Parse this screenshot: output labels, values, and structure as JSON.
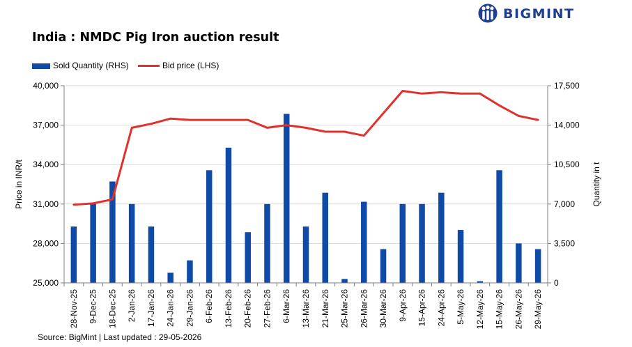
{
  "brand": {
    "name": "BIGMINT",
    "color": "#1f3f8f"
  },
  "title": "India : NMDC Pig Iron auction result",
  "source": "Source: BigMint | Last updated : 29-05-2026",
  "legend": {
    "bars": "Sold Quantity (RHS)",
    "line": "Bid price (LHS)"
  },
  "chart_data": {
    "type": "bar+line",
    "categories": [
      "28-Nov-25",
      "9-Dec-25",
      "18-Dec-25",
      "2-Jan-26",
      "17-Jan-26",
      "24-Jan-26",
      "29-Jan-26",
      "6-Feb-26",
      "13-Feb-26",
      "20-Feb-26",
      "27-Feb-26",
      "6-Mar-26",
      "13-Mar-26",
      "21-Mar-26",
      "25-Mar-26",
      "26-Mar-26",
      "30-Mar-26",
      "9-Apr-26",
      "15-Apr-26",
      "24-Apr-26",
      "5-May-26",
      "12-May-26",
      "15-May-26",
      "26-May-26",
      "29-May-26"
    ],
    "series": [
      {
        "name": "Sold Quantity (RHS)",
        "type": "bar",
        "axis": "right",
        "color": "#0e4aa6",
        "values": [
          5000,
          7000,
          9000,
          7000,
          5000,
          900,
          2000,
          10000,
          12000,
          4500,
          7000,
          15000,
          5000,
          8000,
          350,
          7200,
          3000,
          7000,
          7000,
          8000,
          4700,
          150,
          10000,
          3500,
          3000
        ]
      },
      {
        "name": "Bid price (LHS)",
        "type": "line",
        "axis": "left",
        "color": "#e0312d",
        "values": [
          30950,
          31050,
          31350,
          36800,
          37100,
          37500,
          37400,
          37400,
          37400,
          37400,
          36800,
          37000,
          36800,
          36500,
          36500,
          36200,
          37900,
          39600,
          39400,
          39500,
          39400,
          39400,
          38500,
          37700,
          37400
        ]
      }
    ],
    "ylabel_left": "Price in INR/t",
    "ylabel_right": "Quantity in t",
    "ylim_left": [
      25000,
      40000
    ],
    "ylim_right": [
      0,
      17500
    ],
    "yticks_left": [
      "25,000",
      "28,000",
      "31,000",
      "34,000",
      "37,000",
      "40,000"
    ],
    "yticks_right": [
      "0",
      "3,500",
      "7,000",
      "10,500",
      "14,000",
      "17,500"
    ],
    "grid": true,
    "legend_position": "top-left"
  }
}
